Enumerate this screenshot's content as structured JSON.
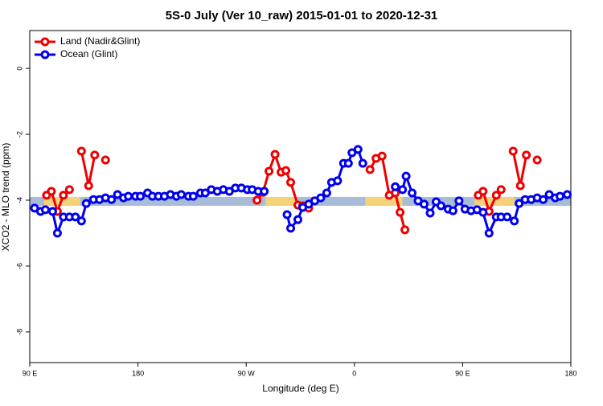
{
  "chart_data": {
    "type": "line",
    "title": "5S-0 July (Ver 10_raw)   2015-01-01 to 2020-12-31",
    "x_label": "Longitude (deg E)",
    "y_label": "XCO2 - MLO trend (ppm)",
    "xlim": [
      90,
      540
    ],
    "ylim": [
      -8.93,
      1.15
    ],
    "xticks": [
      {
        "value": 90,
        "label": "90 E"
      },
      180,
      {
        "value": 270,
        "label": "90 W"
      },
      {
        "value": 360,
        "label": "0"
      },
      {
        "value": 450,
        "label": "90 E"
      },
      {
        "value": 540,
        "label": "180"
      }
    ],
    "yticks": [
      0,
      -2,
      -4,
      -6,
      -8
    ],
    "grid": false,
    "legend": "top-left",
    "band": {
      "range": [
        -3.9,
        -4.17
      ],
      "color": "#a8bcd8",
      "highlight_color": "#f5d27a",
      "highlights": [
        [
          102,
          132
        ],
        [
          286,
          311
        ],
        [
          369,
          400
        ],
        [
          460,
          493
        ]
      ]
    },
    "series": [
      {
        "name": "Land (Nadir&Glint)",
        "color": "#ee0000",
        "x": [
          104,
          108,
          113,
          118,
          123,
          null,
          133,
          139,
          144,
          null,
          153,
          null,
          279,
          284,
          289,
          294,
          299,
          303,
          307,
          313,
          317,
          322,
          null,
          373,
          378,
          383,
          389,
          394,
          398,
          402,
          null,
          463,
          467,
          472,
          478,
          482,
          null,
          492,
          498,
          503,
          null,
          512
        ],
        "values": [
          -3.85,
          -3.73,
          -4.34,
          -3.85,
          -3.68,
          null,
          -2.51,
          -3.56,
          -2.63,
          null,
          -2.78,
          null,
          -4.0,
          -3.76,
          -3.12,
          -2.61,
          -3.15,
          -3.1,
          -3.46,
          -4.15,
          -4.17,
          -4.24,
          null,
          -3.07,
          -2.73,
          -2.66,
          -3.85,
          -3.78,
          -4.37,
          -4.9,
          null,
          -3.85,
          -3.73,
          -4.34,
          -3.85,
          -3.68,
          null,
          -2.51,
          -3.56,
          -2.63,
          null,
          -2.78
        ]
      },
      {
        "name": "Ocean (Glint)",
        "color": "#0000ee",
        "x": [
          94,
          99,
          103,
          109,
          113,
          118,
          123,
          128,
          133,
          137,
          143,
          148,
          153,
          158,
          163,
          168,
          172,
          178,
          182,
          188,
          192,
          197,
          202,
          207,
          212,
          216,
          222,
          226,
          232,
          236,
          241,
          246,
          251,
          256,
          261,
          266,
          271,
          275,
          280,
          285,
          null,
          304,
          307,
          313,
          317,
          322,
          327,
          332,
          337,
          341,
          346,
          351,
          355,
          358,
          363,
          367,
          null,
          394,
          400,
          403,
          408,
          413,
          418,
          423,
          428,
          432,
          438,
          442,
          447,
          452,
          457,
          462,
          467,
          472,
          478,
          482,
          487,
          493,
          497,
          502,
          507,
          512,
          517,
          522,
          527,
          531,
          537
        ],
        "values": [
          -4.24,
          -4.34,
          -4.29,
          -4.34,
          -5.0,
          -4.51,
          -4.51,
          -4.51,
          -4.63,
          -4.1,
          -3.98,
          -3.98,
          -3.93,
          -3.98,
          -3.83,
          -3.93,
          -3.88,
          -3.88,
          -3.88,
          -3.78,
          -3.88,
          -3.88,
          -3.88,
          -3.83,
          -3.88,
          -3.83,
          -3.88,
          -3.88,
          -3.78,
          -3.78,
          -3.68,
          -3.73,
          -3.68,
          -3.73,
          -3.63,
          -3.63,
          -3.68,
          -3.68,
          -3.73,
          -3.73,
          null,
          -4.44,
          -4.85,
          -4.59,
          -4.22,
          -4.12,
          -4.02,
          -3.93,
          -3.78,
          -3.46,
          -3.41,
          -2.88,
          -2.88,
          -2.56,
          -2.46,
          -2.88,
          null,
          -3.59,
          -3.68,
          -3.27,
          -3.78,
          -4.02,
          -4.12,
          -4.39,
          -4.05,
          -4.17,
          -4.27,
          -4.32,
          -4.02,
          -4.27,
          -4.32,
          -4.29,
          -4.37,
          -5.0,
          -4.51,
          -4.51,
          -4.51,
          -4.63,
          -4.1,
          -3.98,
          -3.98,
          -3.93,
          -3.98,
          -3.83,
          -3.93,
          -3.88,
          -3.83
        ]
      }
    ]
  }
}
